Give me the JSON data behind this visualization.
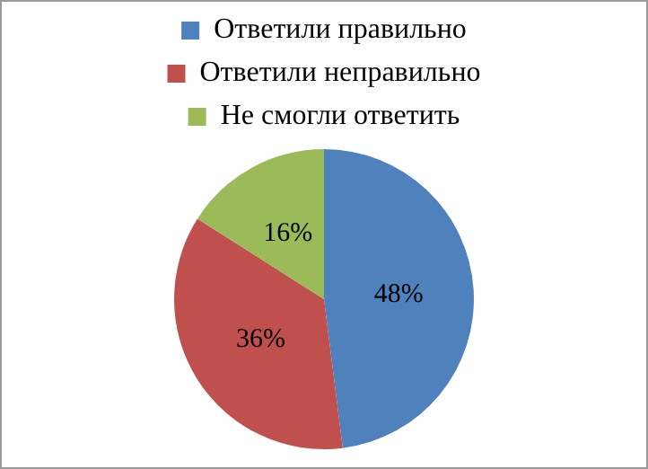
{
  "chart_data": {
    "type": "pie",
    "categories": [
      "Ответили правильно",
      "Ответили неправильно",
      "Не смогли ответить"
    ],
    "values": [
      48,
      36,
      16
    ],
    "colors": [
      "#4f81bd",
      "#c0504d",
      "#9bbb59"
    ],
    "value_labels": [
      "48%",
      "36%",
      "16%"
    ],
    "legend": "top"
  }
}
